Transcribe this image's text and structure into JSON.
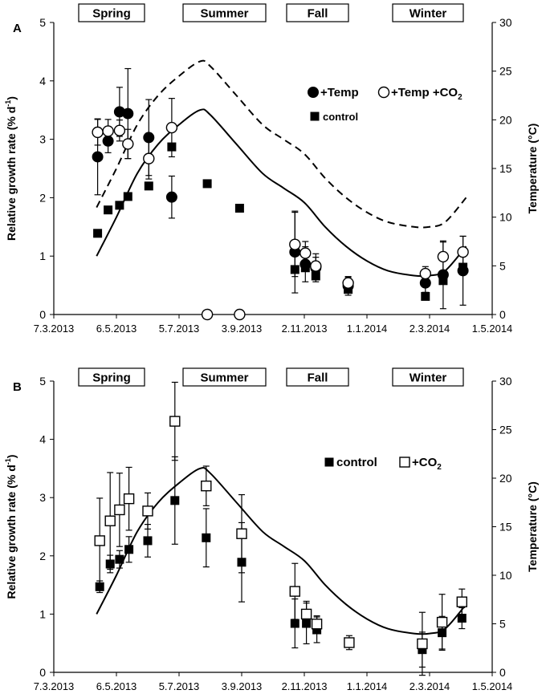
{
  "chart_data": [
    {
      "type": "scatter",
      "panel_label": "A",
      "seasons": [
        "Spring",
        "Summer",
        "Fall",
        "Winter"
      ],
      "ylabel": "Relative growth rate (% d",
      "ylabel_sup": "-1",
      "ylabel_end": ")",
      "y2label": "Temperature (°C)",
      "x_ticks": [
        "7.3.2013",
        "6.5.2013",
        "5.7.2013",
        "3.9.2013",
        "2.11.2013",
        "1.1.2014",
        "2.3.2014",
        "1.5.2014"
      ],
      "xlim_days": [
        0,
        420
      ],
      "ylim": [
        0,
        5
      ],
      "y_ticks": [
        "0",
        "1",
        "2",
        "3",
        "4",
        "5"
      ],
      "y2lim": [
        0,
        30
      ],
      "y2_ticks": [
        "0",
        "5",
        "10",
        "15",
        "20",
        "25",
        "30"
      ],
      "legend": [
        {
          "marker": "filled-circle",
          "label": "+Temp"
        },
        {
          "marker": "open-circle",
          "label": "+Temp +CO",
          "sub": "2"
        },
        {
          "marker": "filled-square",
          "label": "control"
        }
      ],
      "series": [
        {
          "name": "+Temp",
          "marker": "filled-circle",
          "points": [
            {
              "x": 42,
              "y": 2.7,
              "err": 0.65
            },
            {
              "x": 52,
              "y": 2.97,
              "err": 0.2
            },
            {
              "x": 63,
              "y": 3.47,
              "err": 0.42
            },
            {
              "x": 71,
              "y": 3.44,
              "err": 0.77
            },
            {
              "x": 91,
              "y": 3.03,
              "err": 0.65
            },
            {
              "x": 113,
              "y": 2.01,
              "err": 0.36
            },
            {
              "x": 231,
              "y": 1.07,
              "err": 0.7
            },
            {
              "x": 241,
              "y": 0.86,
              "err": 0.3
            },
            {
              "x": 251,
              "y": 0.8,
              "err": 0.24
            },
            {
              "x": 282,
              "y": 0.49,
              "err": 0.16
            },
            {
              "x": 356,
              "y": 0.54,
              "err": 0.16
            },
            {
              "x": 373,
              "y": 0.68,
              "err": 0.58
            },
            {
              "x": 392,
              "y": 0.75,
              "err": 0.59
            }
          ]
        },
        {
          "name": "+Temp +CO2",
          "marker": "open-circle",
          "points": [
            {
              "x": 42,
              "y": 3.12,
              "err": 0.22
            },
            {
              "x": 52,
              "y": 3.14,
              "err": 0.2
            },
            {
              "x": 63,
              "y": 3.15,
              "err": 0.18
            },
            {
              "x": 71,
              "y": 2.92,
              "err": 0.25
            },
            {
              "x": 91,
              "y": 2.67,
              "err": 0.35
            },
            {
              "x": 113,
              "y": 3.2,
              "err": 0.5
            },
            {
              "x": 147,
              "y": 0.0,
              "err": 0
            },
            {
              "x": 178,
              "y": 0.0,
              "err": 0
            },
            {
              "x": 231,
              "y": 1.2,
              "err": 0.55
            },
            {
              "x": 241,
              "y": 1.05,
              "err": 0.2
            },
            {
              "x": 251,
              "y": 0.83,
              "err": 0.15
            },
            {
              "x": 282,
              "y": 0.54,
              "err": 0.1
            },
            {
              "x": 356,
              "y": 0.7,
              "err": 0.12
            },
            {
              "x": 373,
              "y": 0.99,
              "err": 0.25
            },
            {
              "x": 392,
              "y": 1.07,
              "err": 0.27
            }
          ]
        },
        {
          "name": "control",
          "marker": "filled-square",
          "points": [
            {
              "x": 42,
              "y": 1.39,
              "err": 0
            },
            {
              "x": 52,
              "y": 1.79,
              "err": 0
            },
            {
              "x": 63,
              "y": 1.87,
              "err": 0
            },
            {
              "x": 71,
              "y": 2.02,
              "err": 0
            },
            {
              "x": 91,
              "y": 2.2,
              "err": 0
            },
            {
              "x": 113,
              "y": 2.87,
              "err": 0
            },
            {
              "x": 147,
              "y": 2.24,
              "err": 0
            },
            {
              "x": 178,
              "y": 1.82,
              "err": 0
            },
            {
              "x": 231,
              "y": 0.77,
              "err": 0
            },
            {
              "x": 241,
              "y": 0.8,
              "err": 0
            },
            {
              "x": 251,
              "y": 0.66,
              "err": 0
            },
            {
              "x": 282,
              "y": 0.43,
              "err": 0
            },
            {
              "x": 356,
              "y": 0.31,
              "err": 0
            },
            {
              "x": 373,
              "y": 0.58,
              "err": 0
            },
            {
              "x": 392,
              "y": 0.81,
              "err": 0
            }
          ]
        }
      ],
      "temperature_lines": [
        {
          "name": "ambient temperature",
          "style": "solid",
          "points": [
            {
              "x": 41,
              "y2": 6.0
            },
            {
              "x": 60,
              "y2": 10.0
            },
            {
              "x": 80,
              "y2": 14.5
            },
            {
              "x": 100,
              "y2": 17.5
            },
            {
              "x": 120,
              "y2": 19.5
            },
            {
              "x": 140,
              "y2": 21.0
            },
            {
              "x": 150,
              "y2": 20.5
            },
            {
              "x": 175,
              "y2": 17.5
            },
            {
              "x": 200,
              "y2": 14.5
            },
            {
              "x": 220,
              "y2": 13.0
            },
            {
              "x": 240,
              "y2": 11.5
            },
            {
              "x": 260,
              "y2": 9.0
            },
            {
              "x": 280,
              "y2": 7.0
            },
            {
              "x": 300,
              "y2": 5.5
            },
            {
              "x": 320,
              "y2": 4.5
            },
            {
              "x": 345,
              "y2": 4.0
            },
            {
              "x": 360,
              "y2": 4.0
            },
            {
              "x": 375,
              "y2": 4.5
            },
            {
              "x": 395,
              "y2": 7.0
            }
          ]
        },
        {
          "name": "+Temp treatment temperature",
          "style": "dashed",
          "points": [
            {
              "x": 41,
              "y2": 11.0
            },
            {
              "x": 60,
              "y2": 15.0
            },
            {
              "x": 80,
              "y2": 19.5
            },
            {
              "x": 100,
              "y2": 22.5
            },
            {
              "x": 120,
              "y2": 24.5
            },
            {
              "x": 140,
              "y2": 26.0
            },
            {
              "x": 150,
              "y2": 25.5
            },
            {
              "x": 175,
              "y2": 22.5
            },
            {
              "x": 200,
              "y2": 19.5
            },
            {
              "x": 220,
              "y2": 18.0
            },
            {
              "x": 240,
              "y2": 16.5
            },
            {
              "x": 260,
              "y2": 14.0
            },
            {
              "x": 280,
              "y2": 12.0
            },
            {
              "x": 300,
              "y2": 10.5
            },
            {
              "x": 320,
              "y2": 9.5
            },
            {
              "x": 345,
              "y2": 9.0
            },
            {
              "x": 360,
              "y2": 9.0
            },
            {
              "x": 375,
              "y2": 9.5
            },
            {
              "x": 395,
              "y2": 12.0
            }
          ]
        }
      ]
    },
    {
      "type": "scatter",
      "panel_label": "B",
      "seasons": [
        "Spring",
        "Summer",
        "Fall",
        "Winter"
      ],
      "ylabel": "Relative growth rate (% d",
      "ylabel_sup": "-1",
      "ylabel_end": ")",
      "y2label": "Temperature (°C)",
      "x_ticks": [
        "7.3.2013",
        "6.5.2013",
        "5.7.2013",
        "3.9.2013",
        "2.11.2013",
        "1.1.2014",
        "2.3.2014",
        "1.5.2014"
      ],
      "xlim_days": [
        0,
        420
      ],
      "ylim": [
        0,
        5
      ],
      "y_ticks": [
        "0",
        "1",
        "2",
        "3",
        "4",
        "5"
      ],
      "y2lim": [
        0,
        30
      ],
      "y2_ticks": [
        "0",
        "5",
        "10",
        "15",
        "20",
        "25",
        "30"
      ],
      "legend": [
        {
          "marker": "filled-square",
          "label": "control"
        },
        {
          "marker": "open-square",
          "label": "+CO",
          "sub": "2"
        }
      ],
      "series": [
        {
          "name": "control",
          "marker": "filled-square",
          "points": [
            {
              "x": 44,
              "y": 1.47,
              "err": 0.1
            },
            {
              "x": 54,
              "y": 1.86,
              "err": 0.15
            },
            {
              "x": 63,
              "y": 1.94,
              "err": 0.15
            },
            {
              "x": 72,
              "y": 2.11,
              "err": 0.22
            },
            {
              "x": 90,
              "y": 2.26,
              "err": 0.28
            },
            {
              "x": 116,
              "y": 2.95,
              "err": 0.75
            },
            {
              "x": 146,
              "y": 2.31,
              "err": 0.5
            },
            {
              "x": 180,
              "y": 1.89,
              "err": 0.68
            },
            {
              "x": 231,
              "y": 0.84,
              "err": 0.42
            },
            {
              "x": 242,
              "y": 0.84,
              "err": 0.35
            },
            {
              "x": 252,
              "y": 0.73,
              "err": 0.22
            },
            {
              "x": 353,
              "y": 0.39,
              "err": 0.3
            },
            {
              "x": 372,
              "y": 0.68,
              "err": 0.28
            },
            {
              "x": 391,
              "y": 0.93,
              "err": 0.18
            }
          ]
        },
        {
          "name": "+CO2",
          "marker": "open-square",
          "points": [
            {
              "x": 44,
              "y": 2.26,
              "err": 0.73
            },
            {
              "x": 54,
              "y": 2.6,
              "err": 0.83
            },
            {
              "x": 63,
              "y": 2.79,
              "err": 0.63
            },
            {
              "x": 72,
              "y": 2.98,
              "err": 0.54
            },
            {
              "x": 90,
              "y": 2.77,
              "err": 0.31
            },
            {
              "x": 116,
              "y": 4.31,
              "err": 0.67
            },
            {
              "x": 146,
              "y": 3.2,
              "err": 0.34
            },
            {
              "x": 180,
              "y": 2.38,
              "err": 0.67
            },
            {
              "x": 231,
              "y": 1.39,
              "err": 0.48
            },
            {
              "x": 242,
              "y": 1.0,
              "err": 0.22
            },
            {
              "x": 252,
              "y": 0.83,
              "err": 0.14
            },
            {
              "x": 283,
              "y": 0.51,
              "err": 0.12
            },
            {
              "x": 353,
              "y": 0.49,
              "err": 0.54
            },
            {
              "x": 372,
              "y": 0.86,
              "err": 0.48
            },
            {
              "x": 391,
              "y": 1.21,
              "err": 0.22
            }
          ]
        }
      ],
      "temperature_lines": [
        {
          "name": "ambient temperature",
          "style": "solid",
          "points": [
            {
              "x": 41,
              "y2": 6.0
            },
            {
              "x": 60,
              "y2": 10.0
            },
            {
              "x": 80,
              "y2": 14.5
            },
            {
              "x": 100,
              "y2": 17.5
            },
            {
              "x": 120,
              "y2": 19.5
            },
            {
              "x": 140,
              "y2": 21.0
            },
            {
              "x": 150,
              "y2": 20.5
            },
            {
              "x": 175,
              "y2": 17.5
            },
            {
              "x": 200,
              "y2": 14.5
            },
            {
              "x": 220,
              "y2": 13.0
            },
            {
              "x": 240,
              "y2": 11.5
            },
            {
              "x": 260,
              "y2": 9.0
            },
            {
              "x": 280,
              "y2": 7.0
            },
            {
              "x": 300,
              "y2": 5.5
            },
            {
              "x": 320,
              "y2": 4.5
            },
            {
              "x": 345,
              "y2": 4.0
            },
            {
              "x": 360,
              "y2": 4.0
            },
            {
              "x": 375,
              "y2": 4.5
            },
            {
              "x": 395,
              "y2": 7.0
            }
          ]
        }
      ]
    }
  ]
}
